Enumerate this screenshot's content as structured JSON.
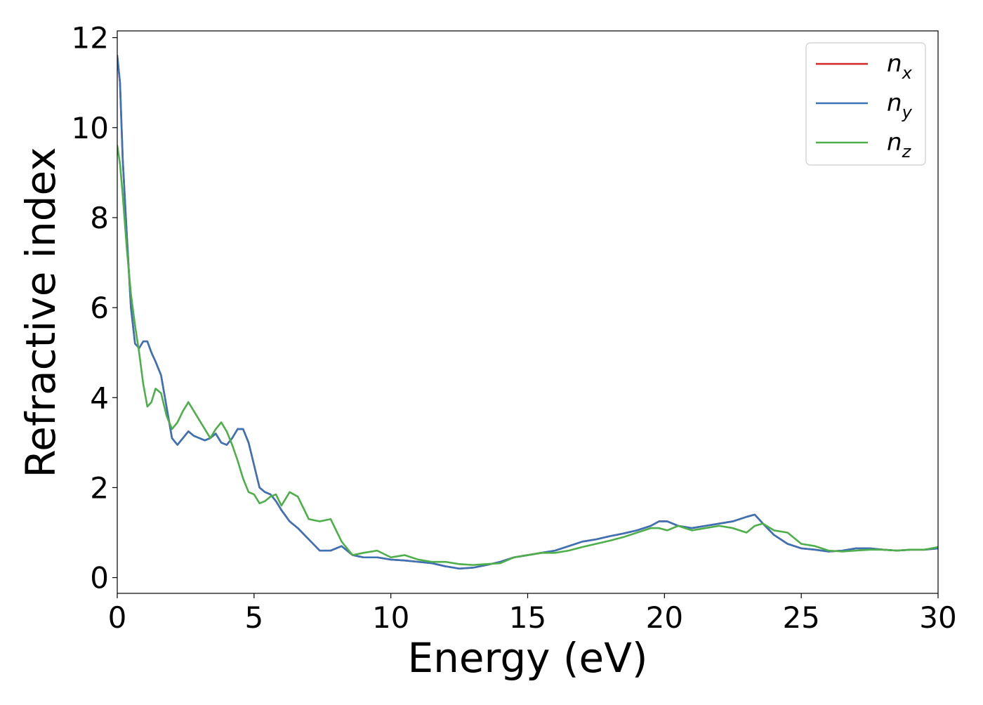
{
  "chart_data": {
    "type": "line",
    "title": "",
    "xlabel": "Energy (eV)",
    "ylabel": "Refractive index",
    "xlim": [
      0,
      30
    ],
    "ylim": [
      -0.35,
      12.15
    ],
    "xticks": [
      0,
      5,
      10,
      15,
      20,
      25,
      30
    ],
    "yticks": [
      0,
      2,
      4,
      6,
      8,
      10,
      12
    ],
    "grid": false,
    "legend_position": "upper right",
    "series": [
      {
        "name": "n_x",
        "legend_base": "n",
        "legend_sub": "x",
        "color": "#d62728",
        "x": [
          0.0,
          0.1,
          0.2,
          0.35,
          0.5,
          0.65,
          0.8,
          0.95,
          1.1,
          1.25,
          1.4,
          1.6,
          1.8,
          2.0,
          2.2,
          2.4,
          2.6,
          2.8,
          3.0,
          3.2,
          3.4,
          3.6,
          3.8,
          4.0,
          4.2,
          4.4,
          4.6,
          4.8,
          5.0,
          5.2,
          5.4,
          5.6,
          5.8,
          6.0,
          6.3,
          6.6,
          7.0,
          7.4,
          7.8,
          8.2,
          8.6,
          9.0,
          9.5,
          10.0,
          10.5,
          11.0,
          11.5,
          12.0,
          12.5,
          13.0,
          13.5,
          14.0,
          14.5,
          15.0,
          15.5,
          16.0,
          16.5,
          17.0,
          17.5,
          18.0,
          18.5,
          19.0,
          19.5,
          19.8,
          20.1,
          20.5,
          21.0,
          21.5,
          22.0,
          22.5,
          23.0,
          23.3,
          23.6,
          24.0,
          24.5,
          25.0,
          25.5,
          26.0,
          26.5,
          27.0,
          27.5,
          28.0,
          28.5,
          29.0,
          29.5,
          30.0
        ],
        "values": [
          11.6,
          11.0,
          9.3,
          7.6,
          6.0,
          5.2,
          5.1,
          5.25,
          5.25,
          5.0,
          4.8,
          4.5,
          3.8,
          3.1,
          2.95,
          3.1,
          3.25,
          3.15,
          3.1,
          3.05,
          3.1,
          3.2,
          3.0,
          2.95,
          3.1,
          3.3,
          3.3,
          3.0,
          2.5,
          2.0,
          1.9,
          1.85,
          1.7,
          1.5,
          1.25,
          1.1,
          0.85,
          0.6,
          0.6,
          0.7,
          0.5,
          0.45,
          0.45,
          0.4,
          0.38,
          0.35,
          0.32,
          0.25,
          0.2,
          0.22,
          0.28,
          0.35,
          0.45,
          0.5,
          0.55,
          0.6,
          0.7,
          0.8,
          0.85,
          0.92,
          0.98,
          1.05,
          1.15,
          1.25,
          1.25,
          1.15,
          1.1,
          1.15,
          1.2,
          1.25,
          1.35,
          1.4,
          1.2,
          0.95,
          0.75,
          0.65,
          0.62,
          0.58,
          0.6,
          0.65,
          0.65,
          0.62,
          0.6,
          0.62,
          0.62,
          0.65
        ]
      },
      {
        "name": "n_y",
        "legend_base": "n",
        "legend_sub": "y",
        "color": "#3a73b6",
        "x": [
          0.0,
          0.1,
          0.2,
          0.35,
          0.5,
          0.65,
          0.8,
          0.95,
          1.1,
          1.25,
          1.4,
          1.6,
          1.8,
          2.0,
          2.2,
          2.4,
          2.6,
          2.8,
          3.0,
          3.2,
          3.4,
          3.6,
          3.8,
          4.0,
          4.2,
          4.4,
          4.6,
          4.8,
          5.0,
          5.2,
          5.4,
          5.6,
          5.8,
          6.0,
          6.3,
          6.6,
          7.0,
          7.4,
          7.8,
          8.2,
          8.6,
          9.0,
          9.5,
          10.0,
          10.5,
          11.0,
          11.5,
          12.0,
          12.5,
          13.0,
          13.5,
          14.0,
          14.5,
          15.0,
          15.5,
          16.0,
          16.5,
          17.0,
          17.5,
          18.0,
          18.5,
          19.0,
          19.5,
          19.8,
          20.1,
          20.5,
          21.0,
          21.5,
          22.0,
          22.5,
          23.0,
          23.3,
          23.6,
          24.0,
          24.5,
          25.0,
          25.5,
          26.0,
          26.5,
          27.0,
          27.5,
          28.0,
          28.5,
          29.0,
          29.5,
          30.0
        ],
        "values": [
          11.6,
          11.0,
          9.3,
          7.6,
          6.0,
          5.2,
          5.1,
          5.25,
          5.25,
          5.0,
          4.8,
          4.5,
          3.8,
          3.1,
          2.95,
          3.1,
          3.25,
          3.15,
          3.1,
          3.05,
          3.1,
          3.2,
          3.0,
          2.95,
          3.1,
          3.3,
          3.3,
          3.0,
          2.5,
          2.0,
          1.9,
          1.85,
          1.7,
          1.5,
          1.25,
          1.1,
          0.85,
          0.6,
          0.6,
          0.7,
          0.5,
          0.45,
          0.45,
          0.4,
          0.38,
          0.35,
          0.32,
          0.25,
          0.2,
          0.22,
          0.28,
          0.35,
          0.45,
          0.5,
          0.55,
          0.6,
          0.7,
          0.8,
          0.85,
          0.92,
          0.98,
          1.05,
          1.15,
          1.25,
          1.25,
          1.15,
          1.1,
          1.15,
          1.2,
          1.25,
          1.35,
          1.4,
          1.2,
          0.95,
          0.75,
          0.65,
          0.62,
          0.58,
          0.6,
          0.65,
          0.65,
          0.62,
          0.6,
          0.62,
          0.62,
          0.65
        ]
      },
      {
        "name": "n_z",
        "legend_base": "n",
        "legend_sub": "z",
        "color": "#4daf4a",
        "x": [
          0.0,
          0.1,
          0.2,
          0.35,
          0.5,
          0.65,
          0.8,
          0.95,
          1.1,
          1.25,
          1.4,
          1.6,
          1.8,
          2.0,
          2.2,
          2.4,
          2.6,
          2.8,
          3.0,
          3.2,
          3.4,
          3.6,
          3.8,
          4.0,
          4.2,
          4.4,
          4.6,
          4.8,
          5.0,
          5.2,
          5.4,
          5.6,
          5.8,
          6.0,
          6.3,
          6.6,
          7.0,
          7.4,
          7.8,
          8.2,
          8.6,
          9.0,
          9.5,
          10.0,
          10.5,
          11.0,
          11.5,
          12.0,
          12.5,
          13.0,
          13.5,
          14.0,
          14.5,
          15.0,
          15.5,
          16.0,
          16.5,
          17.0,
          17.5,
          18.0,
          18.5,
          19.0,
          19.5,
          19.8,
          20.1,
          20.5,
          21.0,
          21.5,
          22.0,
          22.5,
          23.0,
          23.3,
          23.6,
          24.0,
          24.5,
          25.0,
          25.5,
          26.0,
          26.5,
          27.0,
          27.5,
          28.0,
          28.5,
          29.0,
          29.5,
          30.0
        ],
        "values": [
          9.6,
          9.2,
          8.5,
          7.3,
          6.3,
          5.6,
          5.0,
          4.3,
          3.8,
          3.9,
          4.2,
          4.1,
          3.6,
          3.3,
          3.45,
          3.7,
          3.9,
          3.7,
          3.5,
          3.3,
          3.1,
          3.3,
          3.45,
          3.25,
          2.95,
          2.6,
          2.2,
          1.9,
          1.85,
          1.65,
          1.7,
          1.8,
          1.85,
          1.6,
          1.9,
          1.8,
          1.3,
          1.25,
          1.3,
          0.8,
          0.5,
          0.55,
          0.6,
          0.45,
          0.5,
          0.4,
          0.35,
          0.35,
          0.3,
          0.28,
          0.3,
          0.32,
          0.45,
          0.5,
          0.55,
          0.55,
          0.6,
          0.68,
          0.75,
          0.82,
          0.9,
          1.0,
          1.1,
          1.1,
          1.05,
          1.15,
          1.05,
          1.1,
          1.15,
          1.1,
          1.0,
          1.15,
          1.2,
          1.05,
          1.0,
          0.75,
          0.7,
          0.6,
          0.58,
          0.6,
          0.62,
          0.62,
          0.6,
          0.62,
          0.62,
          0.68
        ]
      }
    ]
  }
}
